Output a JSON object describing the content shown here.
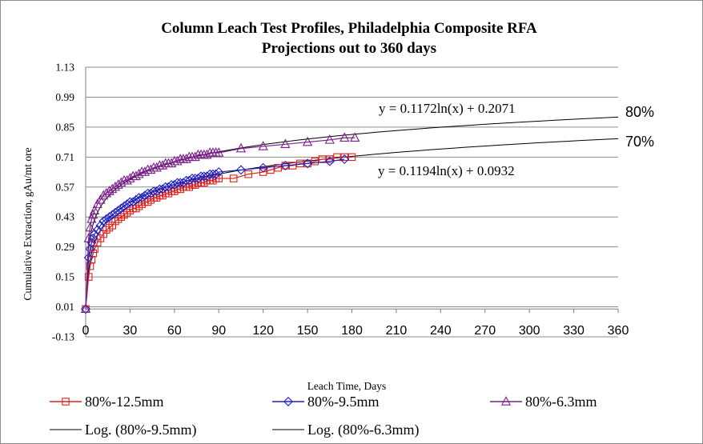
{
  "chart_data": {
    "type": "scatter",
    "title": "Column Leach Test Profiles, Philadelphia Composite RFA",
    "subtitle": "Projections out to 360 days",
    "xlabel": "Leach Time, Days",
    "ylabel": "Cumulative Extraction, gAu/mt ore",
    "xlim": [
      0,
      360
    ],
    "ylim": [
      -0.13,
      1.13
    ],
    "x_ticks": [
      0,
      30,
      60,
      90,
      120,
      150,
      180,
      210,
      240,
      270,
      300,
      330,
      360
    ],
    "y_ticks": [
      -0.13,
      0.01,
      0.15,
      0.29,
      0.43,
      0.57,
      0.71,
      0.85,
      0.99,
      1.13
    ],
    "x_tick_labels": [
      "0",
      "30",
      "60",
      "90",
      "120",
      "150",
      "180",
      "210",
      "240",
      "270",
      "300",
      "330",
      "360"
    ],
    "y_tick_labels": [
      "-0.13",
      "0.01",
      "0.15",
      "0.29",
      "0.43",
      "0.57",
      "0.71",
      "0.85",
      "0.99",
      "1.13"
    ],
    "grid": "horizontal",
    "legend_position": "bottom",
    "series": [
      {
        "name": "80%-12.5mm",
        "color": "#e0201b",
        "marker": "square",
        "x": [
          0,
          2,
          3,
          4,
          5,
          6,
          8,
          10,
          12,
          14,
          16,
          18,
          20,
          22,
          24,
          26,
          28,
          30,
          32,
          34,
          36,
          38,
          40,
          42,
          44,
          46,
          48,
          50,
          52,
          54,
          56,
          58,
          60,
          62,
          64,
          66,
          68,
          70,
          72,
          74,
          76,
          78,
          80,
          82,
          84,
          86,
          88,
          90,
          100,
          110,
          120,
          125,
          130,
          135,
          140,
          145,
          150,
          155,
          160,
          165,
          170,
          175,
          180
        ],
        "y": [
          0.0,
          0.15,
          0.2,
          0.23,
          0.26,
          0.28,
          0.31,
          0.33,
          0.35,
          0.37,
          0.38,
          0.39,
          0.41,
          0.42,
          0.43,
          0.44,
          0.45,
          0.46,
          0.47,
          0.47,
          0.48,
          0.49,
          0.5,
          0.5,
          0.51,
          0.52,
          0.52,
          0.53,
          0.53,
          0.54,
          0.54,
          0.55,
          0.55,
          0.56,
          0.56,
          0.57,
          0.57,
          0.57,
          0.58,
          0.58,
          0.59,
          0.59,
          0.59,
          0.6,
          0.6,
          0.6,
          0.61,
          0.61,
          0.61,
          0.63,
          0.64,
          0.65,
          0.66,
          0.67,
          0.67,
          0.68,
          0.68,
          0.69,
          0.7,
          0.7,
          0.71,
          0.71,
          0.71
        ]
      },
      {
        "name": "80%-9.5mm",
        "color": "#1f1fc4",
        "marker": "diamond",
        "x": [
          0,
          2,
          3,
          4,
          5,
          6,
          8,
          10,
          12,
          14,
          16,
          18,
          20,
          22,
          24,
          26,
          28,
          30,
          32,
          34,
          36,
          38,
          40,
          42,
          44,
          46,
          48,
          50,
          52,
          54,
          56,
          58,
          60,
          62,
          64,
          66,
          68,
          70,
          72,
          74,
          76,
          78,
          80,
          82,
          84,
          86,
          88,
          90,
          105,
          120,
          135,
          150,
          165,
          175
        ],
        "y": [
          0.0,
          0.24,
          0.28,
          0.31,
          0.33,
          0.35,
          0.37,
          0.39,
          0.41,
          0.42,
          0.43,
          0.44,
          0.45,
          0.46,
          0.47,
          0.48,
          0.49,
          0.5,
          0.5,
          0.51,
          0.52,
          0.52,
          0.53,
          0.54,
          0.54,
          0.55,
          0.55,
          0.56,
          0.56,
          0.57,
          0.57,
          0.58,
          0.58,
          0.59,
          0.59,
          0.59,
          0.6,
          0.6,
          0.61,
          0.61,
          0.61,
          0.62,
          0.62,
          0.62,
          0.63,
          0.63,
          0.63,
          0.64,
          0.65,
          0.66,
          0.67,
          0.68,
          0.69,
          0.7
        ]
      },
      {
        "name": "80%-6.3mm",
        "color": "#7b1f8c",
        "marker": "triangle",
        "x": [
          0,
          2,
          3,
          4,
          5,
          6,
          8,
          10,
          12,
          14,
          16,
          18,
          20,
          22,
          24,
          26,
          28,
          30,
          32,
          34,
          36,
          38,
          40,
          42,
          44,
          46,
          48,
          50,
          52,
          54,
          56,
          58,
          60,
          62,
          64,
          66,
          68,
          70,
          72,
          74,
          76,
          78,
          80,
          82,
          84,
          86,
          88,
          90,
          105,
          120,
          135,
          150,
          165,
          175,
          182
        ],
        "y": [
          0.0,
          0.33,
          0.38,
          0.42,
          0.44,
          0.46,
          0.49,
          0.51,
          0.53,
          0.54,
          0.55,
          0.56,
          0.57,
          0.58,
          0.59,
          0.6,
          0.6,
          0.61,
          0.62,
          0.62,
          0.63,
          0.64,
          0.64,
          0.65,
          0.65,
          0.66,
          0.66,
          0.67,
          0.67,
          0.68,
          0.68,
          0.68,
          0.69,
          0.69,
          0.7,
          0.7,
          0.7,
          0.71,
          0.71,
          0.71,
          0.72,
          0.72,
          0.72,
          0.72,
          0.73,
          0.73,
          0.73,
          0.73,
          0.75,
          0.76,
          0.77,
          0.78,
          0.79,
          0.8,
          0.8
        ]
      }
    ],
    "trendlines": [
      {
        "name": "Log. (80%-9.5mm)",
        "type": "logarithmic",
        "a": 0.1194,
        "b": 0.0932,
        "x_range": [
          1,
          360
        ],
        "color": "#000000",
        "equation": "y = 0.1194ln(x) + 0.0932",
        "end_label": "70%"
      },
      {
        "name": "Log. (80%-6.3mm)",
        "type": "logarithmic",
        "a": 0.1172,
        "b": 0.2071,
        "x_range": [
          1,
          360
        ],
        "color": "#000000",
        "equation": "y = 0.1172ln(x) + 0.2071",
        "end_label": "80%"
      }
    ],
    "legend": [
      {
        "label": "80%-12.5mm",
        "kind": "series",
        "ref": 0
      },
      {
        "label": "80%-9.5mm",
        "kind": "series",
        "ref": 1
      },
      {
        "label": "80%-6.3mm",
        "kind": "series",
        "ref": 2
      },
      {
        "label": "Log. (80%-9.5mm)",
        "kind": "trendline",
        "ref": 0
      },
      {
        "label": "Log. (80%-6.3mm)",
        "kind": "trendline",
        "ref": 1
      }
    ]
  }
}
